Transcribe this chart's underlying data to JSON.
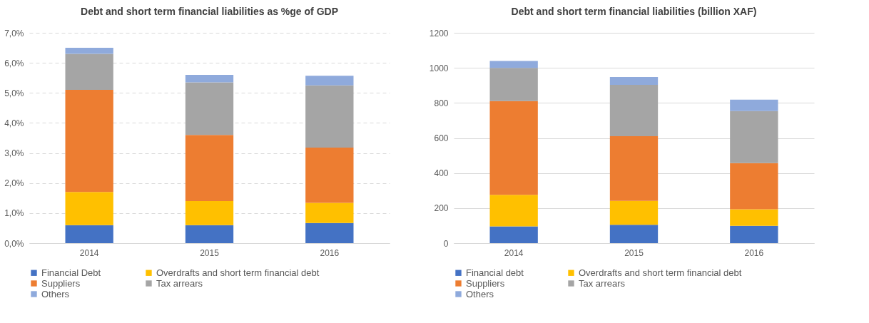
{
  "chart_data": [
    {
      "type": "bar",
      "title": "Debt and short term financial liabilities as %ge of GDP",
      "categories": [
        "2014",
        "2015",
        "2016"
      ],
      "stacked": true,
      "grid": "y",
      "legend": "bottom",
      "ylim": [
        0,
        7
      ],
      "yticks": [
        {
          "value": 0,
          "label": "0,0%"
        },
        {
          "value": 1,
          "label": "1,0%"
        },
        {
          "value": 2,
          "label": "2,0%"
        },
        {
          "value": 3,
          "label": "3,0%"
        },
        {
          "value": 4,
          "label": "4,0%"
        },
        {
          "value": 5,
          "label": "5,0%"
        },
        {
          "value": 6,
          "label": "6,0%"
        },
        {
          "value": 7,
          "label": "7,0%"
        }
      ],
      "series": [
        {
          "name": "Financial Debt",
          "color": "#4472c4",
          "values": [
            0.6,
            0.6,
            0.67
          ]
        },
        {
          "name": "Overdrafts and short term financial debt",
          "color": "#ffc000",
          "values": [
            1.1,
            0.8,
            0.67
          ]
        },
        {
          "name": "Suppliers",
          "color": "#ed7d31",
          "values": [
            3.4,
            2.2,
            1.84
          ]
        },
        {
          "name": "Tax arrears",
          "color": "#a5a5a5",
          "values": [
            1.2,
            1.75,
            2.07
          ]
        },
        {
          "name": "Others",
          "color": "#8faadc",
          "values": [
            0.2,
            0.25,
            0.32
          ]
        }
      ]
    },
    {
      "type": "bar",
      "title": "Debt and short term financial liabilities (billion XAF)",
      "categories": [
        "2014",
        "2015",
        "2016"
      ],
      "stacked": true,
      "grid": "y",
      "legend": "bottom",
      "ylim": [
        0,
        1200
      ],
      "yticks": [
        0,
        200,
        400,
        600,
        800,
        1000,
        1200
      ],
      "series": [
        {
          "name": "Financial debt",
          "color": "#4472c4",
          "values": [
            96,
            105,
            99
          ]
        },
        {
          "name": "Overdrafts and short term financial debt",
          "color": "#ffc000",
          "values": [
            180,
            136,
            94
          ]
        },
        {
          "name": "Suppliers",
          "color": "#ed7d31",
          "values": [
            535,
            369,
            264
          ]
        },
        {
          "name": "Tax arrears",
          "color": "#a5a5a5",
          "values": [
            189,
            293,
            297
          ]
        },
        {
          "name": "Others",
          "color": "#8faadc",
          "values": [
            39,
            45,
            65
          ]
        }
      ]
    }
  ]
}
